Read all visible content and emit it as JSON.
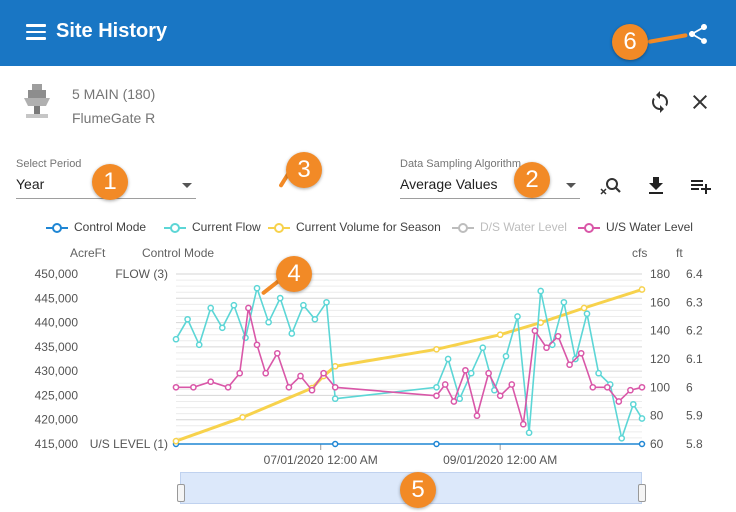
{
  "header": {
    "title": "Site History",
    "menu_icon": "menu-icon",
    "share_icon": "share-icon",
    "bg_color": "#1976c4"
  },
  "site": {
    "name": "5 MAIN (180)",
    "type": "FlumeGate R",
    "icon": "flumegate-icon"
  },
  "actions": {
    "refresh_icon": "refresh-icon",
    "close_icon": "close-icon",
    "zoom_reset_icon": "zoom-reset-icon",
    "download_icon": "download-icon",
    "add_list_icon": "playlist-add-icon"
  },
  "period": {
    "label": "Select Period",
    "value": "Year"
  },
  "sampling": {
    "label": "Data Sampling Algorithm",
    "value": "Average Values"
  },
  "legend": [
    {
      "label": "Control Mode",
      "color": "#1f86d4",
      "enabled": true
    },
    {
      "label": "Current Flow",
      "color": "#5cd6d6",
      "enabled": true
    },
    {
      "label": "Current Volume for Season",
      "color": "#f7d24c",
      "enabled": true
    },
    {
      "label": "D/S Water Level",
      "color": "#bdbdbd",
      "enabled": false
    },
    {
      "label": "U/S Water Level",
      "color": "#d957a8",
      "enabled": true
    }
  ],
  "annotations": [
    "1",
    "2",
    "3",
    "4",
    "5",
    "6"
  ],
  "chart_data": {
    "type": "line",
    "axes": {
      "left_volume": {
        "title": "AcreFt",
        "ticks": [
          "450,000",
          "445,000",
          "440,000",
          "435,000",
          "430,000",
          "425,000",
          "420,000",
          "415,000"
        ],
        "range": [
          415000,
          450000
        ]
      },
      "control_mode": {
        "title": "Control Mode",
        "ticks": [
          "FLOW (3)",
          "U/S LEVEL (1)"
        ]
      },
      "right_flow": {
        "title": "cfs",
        "ticks": [
          "180",
          "160",
          "140",
          "120",
          "100",
          "80",
          "60"
        ],
        "range": [
          60,
          180
        ]
      },
      "right_level": {
        "title": "ft",
        "ticks": [
          "6.4",
          "6.3",
          "6.2",
          "6.1",
          "6",
          "5.9",
          "5.8"
        ],
        "range": [
          5.8,
          6.4
        ]
      }
    },
    "x_ticks": [
      "07/01/2020 12:00 AM",
      "09/01/2020 12:00 AM"
    ],
    "x_range": [
      "2020-05-12",
      "2020-10-20"
    ],
    "series": [
      {
        "name": "Control Mode",
        "axis": "control_mode",
        "points": [
          [
            "2020-05-12",
            1
          ],
          [
            "2020-07-06",
            1
          ],
          [
            "2020-08-10",
            1
          ],
          [
            "2020-10-20",
            1
          ]
        ]
      },
      {
        "name": "Current Volume for Season",
        "axis": "left_volume",
        "points": [
          [
            "2020-05-12",
            415600
          ],
          [
            "2020-06-04",
            420500
          ],
          [
            "2020-06-28",
            426500
          ],
          [
            "2020-07-02",
            429000
          ],
          [
            "2020-07-06",
            431000
          ],
          [
            "2020-08-10",
            434500
          ],
          [
            "2020-09-01",
            437500
          ],
          [
            "2020-09-15",
            440000
          ],
          [
            "2020-09-30",
            443000
          ],
          [
            "2020-10-20",
            446800
          ]
        ]
      },
      {
        "name": "Current Flow",
        "axis": "right_flow",
        "points": [
          [
            "2020-05-12",
            134
          ],
          [
            "2020-05-16",
            148
          ],
          [
            "2020-05-20",
            130
          ],
          [
            "2020-05-24",
            156
          ],
          [
            "2020-05-28",
            142
          ],
          [
            "2020-06-01",
            158
          ],
          [
            "2020-06-05",
            135
          ],
          [
            "2020-06-09",
            170
          ],
          [
            "2020-06-13",
            146
          ],
          [
            "2020-06-17",
            163
          ],
          [
            "2020-06-21",
            138
          ],
          [
            "2020-06-25",
            158
          ],
          [
            "2020-06-29",
            148
          ],
          [
            "2020-07-03",
            160
          ],
          [
            "2020-07-06",
            92
          ],
          [
            "2020-08-10",
            100
          ],
          [
            "2020-08-14",
            120
          ],
          [
            "2020-08-18",
            92
          ],
          [
            "2020-08-22",
            110
          ],
          [
            "2020-08-26",
            128
          ],
          [
            "2020-08-30",
            98
          ],
          [
            "2020-09-03",
            122
          ],
          [
            "2020-09-07",
            150
          ],
          [
            "2020-09-11",
            68
          ],
          [
            "2020-09-15",
            168
          ],
          [
            "2020-09-19",
            130
          ],
          [
            "2020-09-23",
            160
          ],
          [
            "2020-09-27",
            120
          ],
          [
            "2020-10-01",
            152
          ],
          [
            "2020-10-05",
            110
          ],
          [
            "2020-10-09",
            102
          ],
          [
            "2020-10-13",
            64
          ],
          [
            "2020-10-17",
            88
          ],
          [
            "2020-10-20",
            78
          ]
        ]
      },
      {
        "name": "U/S Water Level",
        "axis": "right_level",
        "points": [
          [
            "2020-05-12",
            6.0
          ],
          [
            "2020-05-18",
            6.0
          ],
          [
            "2020-05-24",
            6.02
          ],
          [
            "2020-05-30",
            6.0
          ],
          [
            "2020-06-03",
            6.05
          ],
          [
            "2020-06-06",
            6.28
          ],
          [
            "2020-06-09",
            6.15
          ],
          [
            "2020-06-12",
            6.05
          ],
          [
            "2020-06-16",
            6.12
          ],
          [
            "2020-06-20",
            6.0
          ],
          [
            "2020-06-24",
            6.04
          ],
          [
            "2020-06-28",
            5.99
          ],
          [
            "2020-07-02",
            6.05
          ],
          [
            "2020-07-06",
            6.0
          ],
          [
            "2020-08-10",
            5.97
          ],
          [
            "2020-08-13",
            6.01
          ],
          [
            "2020-08-16",
            5.95
          ],
          [
            "2020-08-20",
            6.06
          ],
          [
            "2020-08-24",
            5.9
          ],
          [
            "2020-08-28",
            6.05
          ],
          [
            "2020-09-01",
            5.97
          ],
          [
            "2020-09-05",
            6.01
          ],
          [
            "2020-09-09",
            5.87
          ],
          [
            "2020-09-13",
            6.2
          ],
          [
            "2020-09-17",
            6.14
          ],
          [
            "2020-09-21",
            6.18
          ],
          [
            "2020-09-25",
            6.08
          ],
          [
            "2020-09-29",
            6.12
          ],
          [
            "2020-10-03",
            6.0
          ],
          [
            "2020-10-08",
            6.0
          ],
          [
            "2020-10-12",
            5.95
          ],
          [
            "2020-10-16",
            5.99
          ],
          [
            "2020-10-20",
            6.0
          ]
        ]
      }
    ],
    "grid": true
  },
  "navigator": {
    "label": "range-navigator"
  }
}
